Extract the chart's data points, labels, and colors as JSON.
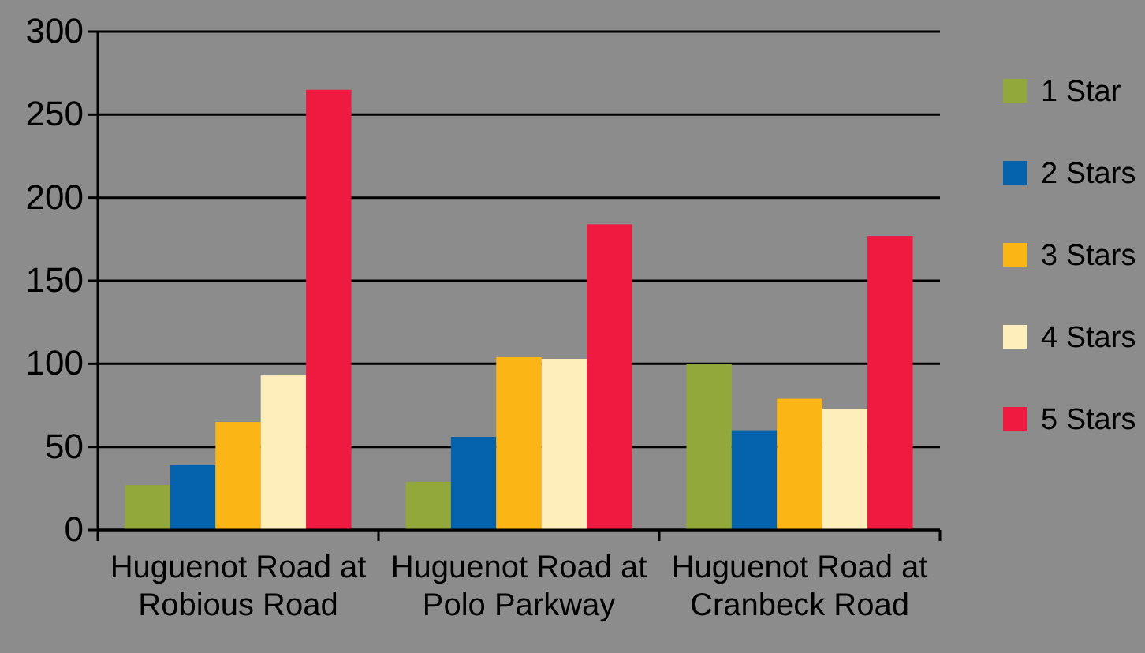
{
  "chart_data": {
    "type": "bar",
    "categories": [
      "Huguenot Road at Robious Road",
      "Huguenot Road at Polo Parkway",
      "Huguenot Road at Cranbeck Road"
    ],
    "series": [
      {
        "name": "1 Star",
        "color": "#92a83a",
        "values": [
          27,
          29,
          100
        ]
      },
      {
        "name": "2 Stars",
        "color": "#0563ad",
        "values": [
          39,
          56,
          60
        ]
      },
      {
        "name": "3 Stars",
        "color": "#fbb615",
        "values": [
          65,
          104,
          79
        ]
      },
      {
        "name": "4 Stars",
        "color": "#fdeebb",
        "values": [
          93,
          103,
          73
        ]
      },
      {
        "name": "5 Stars",
        "color": "#ee1a40",
        "values": [
          265,
          184,
          177
        ]
      }
    ],
    "ylim": [
      0,
      300
    ],
    "yticks": [
      0,
      50,
      100,
      150,
      200,
      250,
      300
    ],
    "grid": "y",
    "legend": "right"
  }
}
